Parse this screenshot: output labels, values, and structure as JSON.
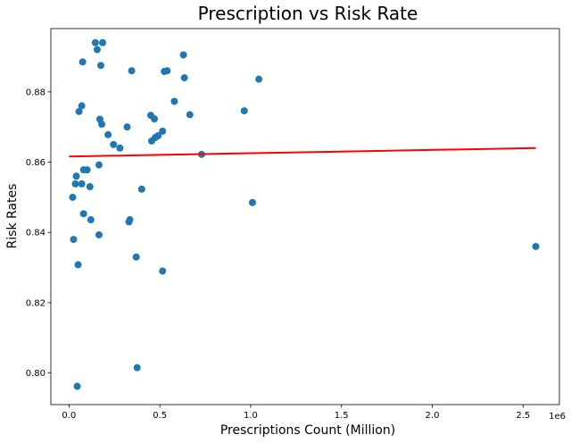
{
  "chart_data": {
    "type": "scatter",
    "title": "Prescription vs Risk Rate",
    "xlabel": "Prescriptions Count (Million)",
    "ylabel": "Risk Rates",
    "x_offset_label": "1e6",
    "xlim": [
      -0.1,
      2.7
    ],
    "ylim": [
      0.791,
      0.898
    ],
    "xticks": [
      0.0,
      0.5,
      1.0,
      1.5,
      2.0,
      2.5
    ],
    "xtick_labels": [
      "0.0",
      "0.5",
      "1.0",
      "1.5",
      "2.0",
      "2.5"
    ],
    "yticks": [
      0.8,
      0.82,
      0.84,
      0.86,
      0.88
    ],
    "ytick_labels": [
      "0.80",
      "0.82",
      "0.84",
      "0.86",
      "0.88"
    ],
    "grid": false,
    "point_color": "#1f77b4",
    "line_color": "#ff0000",
    "points": [
      {
        "x": 0.145,
        "y": 0.894
      },
      {
        "x": 0.185,
        "y": 0.894
      },
      {
        "x": 0.155,
        "y": 0.892
      },
      {
        "x": 0.63,
        "y": 0.8905
      },
      {
        "x": 0.075,
        "y": 0.8885
      },
      {
        "x": 0.175,
        "y": 0.8875
      },
      {
        "x": 0.345,
        "y": 0.886
      },
      {
        "x": 0.525,
        "y": 0.8858
      },
      {
        "x": 0.54,
        "y": 0.886
      },
      {
        "x": 0.635,
        "y": 0.884
      },
      {
        "x": 1.045,
        "y": 0.8836
      },
      {
        "x": 0.58,
        "y": 0.8773
      },
      {
        "x": 0.07,
        "y": 0.876
      },
      {
        "x": 0.055,
        "y": 0.8744
      },
      {
        "x": 0.965,
        "y": 0.8746
      },
      {
        "x": 0.665,
        "y": 0.8735
      },
      {
        "x": 0.45,
        "y": 0.8733
      },
      {
        "x": 0.47,
        "y": 0.8723
      },
      {
        "x": 0.17,
        "y": 0.8722
      },
      {
        "x": 0.18,
        "y": 0.8708
      },
      {
        "x": 0.32,
        "y": 0.87
      },
      {
        "x": 0.515,
        "y": 0.8688
      },
      {
        "x": 0.215,
        "y": 0.8678
      },
      {
        "x": 0.49,
        "y": 0.8675
      },
      {
        "x": 0.475,
        "y": 0.867
      },
      {
        "x": 0.455,
        "y": 0.866
      },
      {
        "x": 0.245,
        "y": 0.865
      },
      {
        "x": 0.28,
        "y": 0.864
      },
      {
        "x": 0.73,
        "y": 0.8622
      },
      {
        "x": 0.165,
        "y": 0.8592
      },
      {
        "x": 0.08,
        "y": 0.8578
      },
      {
        "x": 0.1,
        "y": 0.8578
      },
      {
        "x": 0.04,
        "y": 0.856
      },
      {
        "x": 0.035,
        "y": 0.8538
      },
      {
        "x": 0.07,
        "y": 0.8538
      },
      {
        "x": 0.115,
        "y": 0.853
      },
      {
        "x": 0.4,
        "y": 0.8523
      },
      {
        "x": 0.02,
        "y": 0.85
      },
      {
        "x": 1.01,
        "y": 0.8485
      },
      {
        "x": 0.08,
        "y": 0.8453
      },
      {
        "x": 0.12,
        "y": 0.8436
      },
      {
        "x": 0.335,
        "y": 0.8436
      },
      {
        "x": 0.33,
        "y": 0.843
      },
      {
        "x": 0.165,
        "y": 0.8393
      },
      {
        "x": 0.025,
        "y": 0.838
      },
      {
        "x": 2.57,
        "y": 0.836
      },
      {
        "x": 0.37,
        "y": 0.833
      },
      {
        "x": 0.05,
        "y": 0.8308
      },
      {
        "x": 0.515,
        "y": 0.829
      },
      {
        "x": 0.375,
        "y": 0.8015
      },
      {
        "x": 0.045,
        "y": 0.7962
      }
    ],
    "trendline": {
      "x": [
        0.0,
        2.57
      ],
      "y": [
        0.8616,
        0.864
      ]
    }
  }
}
